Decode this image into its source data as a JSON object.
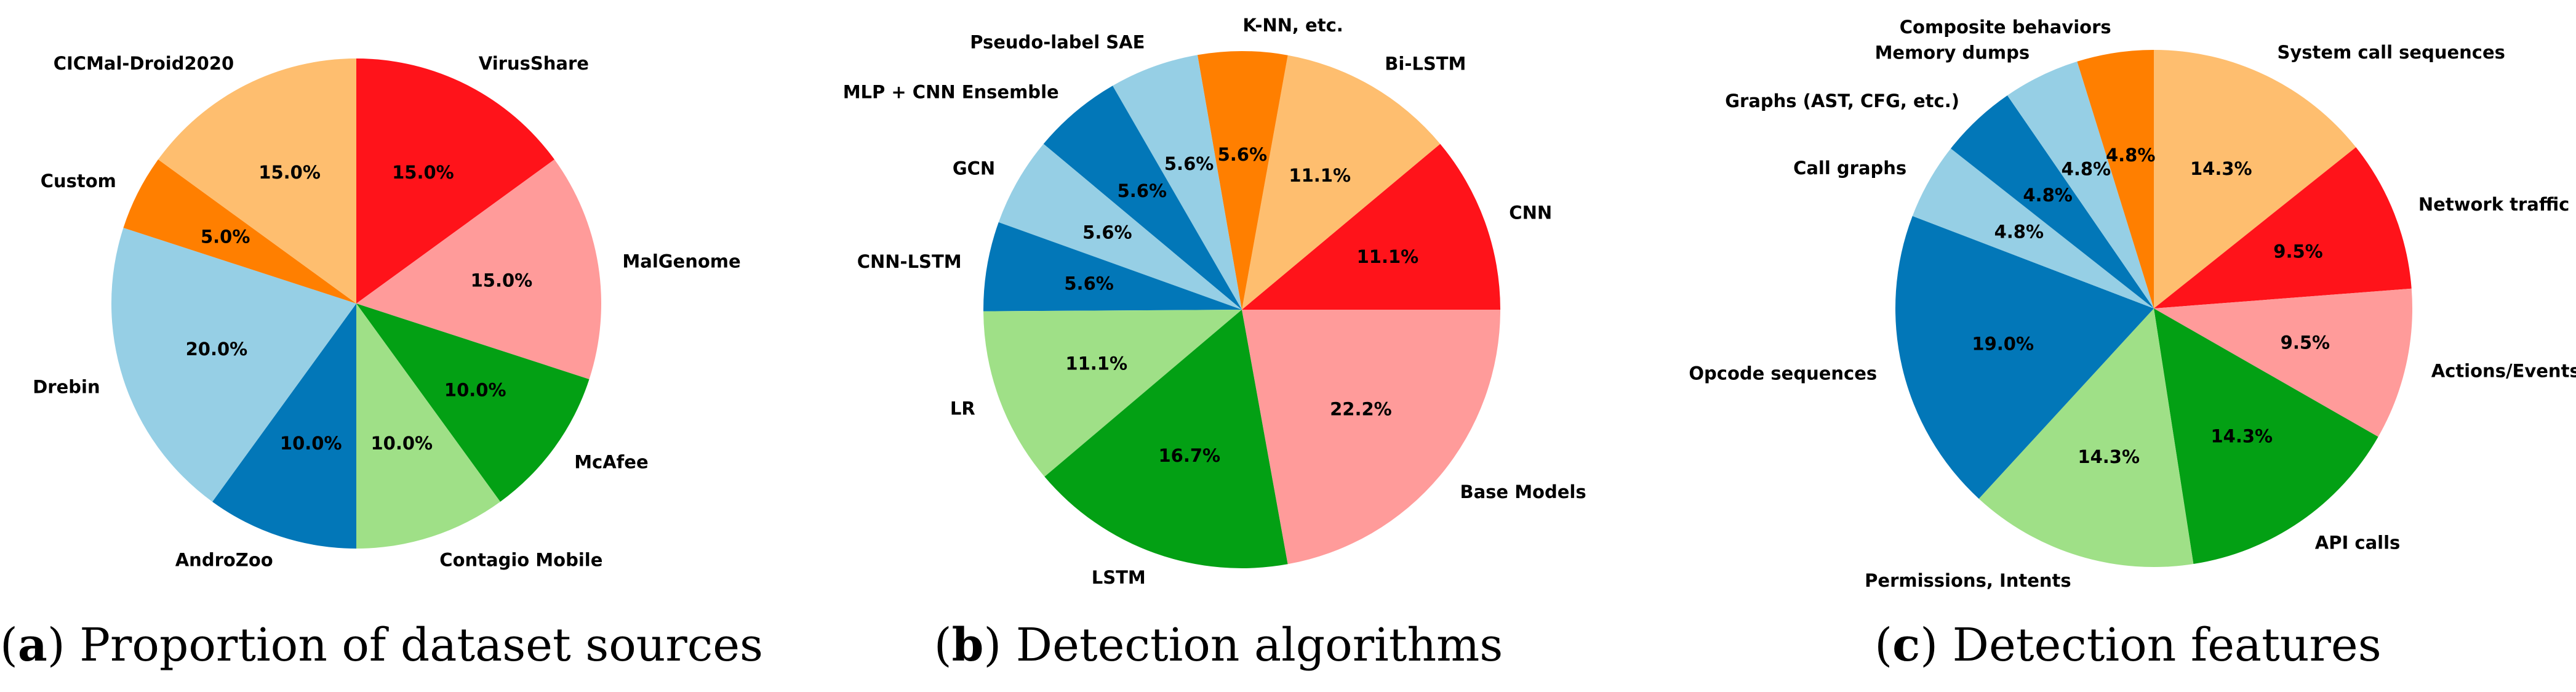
{
  "chart_data": [
    {
      "type": "pie",
      "caption_letter": "a",
      "caption_text": "Proportion of dataset sources",
      "start_angle": 90,
      "direction": "clockwise",
      "slices": [
        {
          "label": "VirusShare",
          "value": 15.0,
          "pct": "15.0%",
          "color": "#ff131a"
        },
        {
          "label": "MalGenome",
          "value": 15.0,
          "pct": "15.0%",
          "color": "#ff9b9a"
        },
        {
          "label": "McAfee",
          "value": 10.0,
          "pct": "10.0%",
          "color": "#03a014"
        },
        {
          "label": "Contagio Mobile",
          "value": 10.0,
          "pct": "10.0%",
          "color": "#9fe087"
        },
        {
          "label": "AndroZoo",
          "value": 10.0,
          "pct": "10.0%",
          "color": "#0277b8"
        },
        {
          "label": "Drebin",
          "value": 20.0,
          "pct": "20.0%",
          "color": "#96cfe5"
        },
        {
          "label": "Custom",
          "value": 5.0,
          "pct": "5.0%",
          "color": "#ff7f00"
        },
        {
          "label": "CICMal-Droid2020",
          "value": 15.0,
          "pct": "15.0%",
          "color": "#febe6f"
        }
      ]
    },
    {
      "type": "pie",
      "caption_letter": "b",
      "caption_text": "Detection algorithms",
      "start_angle": 0,
      "direction": "counterclockwise",
      "slices": [
        {
          "label": "CNN",
          "value": 11.1,
          "pct": "11.1%",
          "color": "#ff131a"
        },
        {
          "label": "Bi-LSTM",
          "value": 11.1,
          "pct": "11.1%",
          "color": "#febe6f"
        },
        {
          "label": "K-NN, etc.",
          "value": 5.6,
          "pct": "5.6%",
          "color": "#ff7f00"
        },
        {
          "label": "Pseudo-label SAE",
          "value": 5.6,
          "pct": "5.6%",
          "color": "#96cfe5"
        },
        {
          "label": "MLP + CNN Ensemble",
          "value": 5.6,
          "pct": "5.6%",
          "color": "#0277b8"
        },
        {
          "label": "GCN",
          "value": 5.6,
          "pct": "5.6%",
          "color": "#96cfe5"
        },
        {
          "label": "CNN-LSTM",
          "value": 5.6,
          "pct": "5.6%",
          "color": "#0277b8"
        },
        {
          "label": "LR",
          "value": 11.1,
          "pct": "11.1%",
          "color": "#9fe087"
        },
        {
          "label": "LSTM",
          "value": 16.7,
          "pct": "16.7%",
          "color": "#03a014"
        },
        {
          "label": "Base Models",
          "value": 22.2,
          "pct": "22.2%",
          "color": "#ff9b9a"
        }
      ]
    },
    {
      "type": "pie",
      "caption_letter": "c",
      "caption_text": "Detection features",
      "start_angle": 90,
      "direction": "clockwise",
      "slices": [
        {
          "label": "System call sequences",
          "value": 14.3,
          "pct": "14.3%",
          "color": "#febe6f"
        },
        {
          "label": "Network traffic",
          "value": 9.5,
          "pct": "9.5%",
          "color": "#ff131a"
        },
        {
          "label": "Actions/Events",
          "value": 9.5,
          "pct": "9.5%",
          "color": "#ff9b9a"
        },
        {
          "label": "API calls",
          "value": 14.3,
          "pct": "14.3%",
          "color": "#03a014"
        },
        {
          "label": "Permissions, Intents",
          "value": 14.3,
          "pct": "14.3%",
          "color": "#9fe087"
        },
        {
          "label": "Opcode sequences",
          "value": 19.0,
          "pct": "19.0%",
          "color": "#0277b8"
        },
        {
          "label": "Call graphs",
          "value": 4.8,
          "pct": "4.8%",
          "color": "#96cfe5"
        },
        {
          "label": "Graphs (AST, CFG, etc.)",
          "value": 4.8,
          "pct": "4.8%",
          "color": "#0277b8"
        },
        {
          "label": "Memory dumps",
          "value": 4.8,
          "pct": "4.8%",
          "color": "#96cfe5"
        },
        {
          "label": "Composite behaviors",
          "value": 4.8,
          "pct": "4.8%",
          "color": "#ff7f00"
        }
      ]
    }
  ]
}
